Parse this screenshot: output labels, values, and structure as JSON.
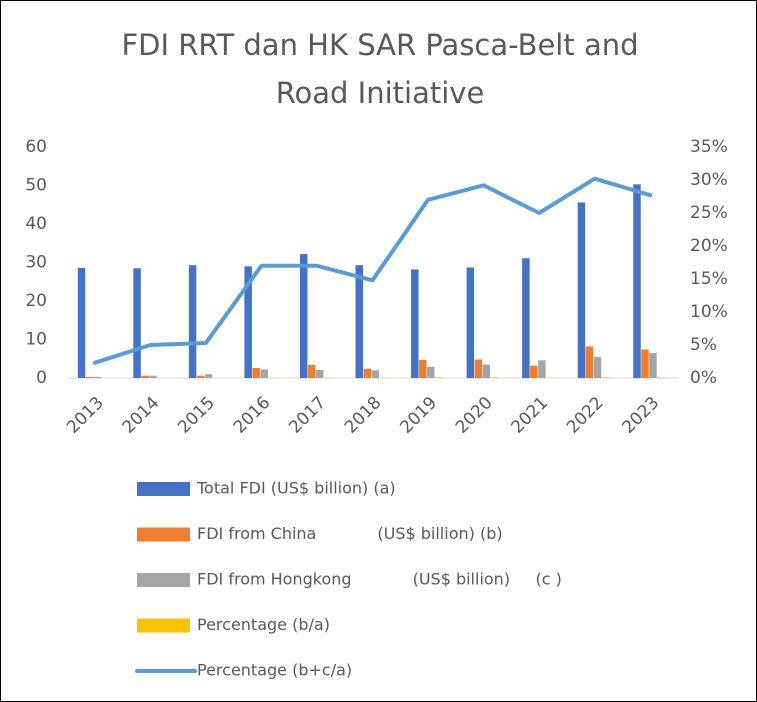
{
  "chart_data": {
    "type": "bar",
    "title": [
      "FDI RRT dan HK SAR Pasca-Belt and",
      "Road Initiative"
    ],
    "categories": [
      "2013",
      "2014",
      "2015",
      "2016",
      "2017",
      "2018",
      "2019",
      "2020",
      "2021",
      "2022",
      "2023"
    ],
    "series": [
      {
        "name": "Total FDI (US$ billion) (a)",
        "color": "#4472c4",
        "type": "bar",
        "values": [
          28.6,
          28.5,
          29.3,
          29.0,
          32.2,
          29.3,
          28.2,
          28.7,
          31.1,
          45.6,
          50.3
        ]
      },
      {
        "name": "FDI from China            (US$ billion) (b)",
        "color": "#ed7d31",
        "type": "bar",
        "values": [
          0.3,
          0.6,
          0.6,
          2.6,
          3.4,
          2.4,
          4.7,
          4.8,
          3.2,
          8.2,
          7.4
        ]
      },
      {
        "name": "FDI from Hongkong            (US$ billion)     (c )",
        "color": "#a5a5a5",
        "type": "bar",
        "values": [
          0.3,
          0.6,
          1.0,
          2.2,
          2.1,
          2.0,
          2.9,
          3.5,
          4.6,
          5.5,
          6.5
        ]
      },
      {
        "name": "Percentage (b/a)",
        "color": "#ffc000",
        "type": "bar",
        "values": [
          0.01,
          0.02,
          0.02,
          0.09,
          0.11,
          0.08,
          0.17,
          0.17,
          0.1,
          0.18,
          0.15
        ]
      },
      {
        "name": "Percentage (b+c/a)",
        "color": "#5b9bd5",
        "type": "line",
        "axis": "y2",
        "values": [
          2.3,
          5.0,
          5.3,
          17.0,
          17.0,
          14.8,
          27.0,
          29.2,
          25.0,
          30.2,
          27.7
        ]
      }
    ],
    "ylim": [
      0,
      60
    ],
    "yticks": [
      0,
      10,
      20,
      30,
      40,
      50,
      60
    ],
    "y2lim": [
      0,
      35
    ],
    "y2ticks": [
      {
        "value": 0,
        "label": "0%"
      },
      {
        "value": 5,
        "label": "5%"
      },
      {
        "value": 10,
        "label": "10%"
      },
      {
        "value": 15,
        "label": "15%"
      },
      {
        "value": 20,
        "label": "20%"
      },
      {
        "value": 25,
        "label": "25%"
      },
      {
        "value": 30,
        "label": "30%"
      },
      {
        "value": 35,
        "label": "35%"
      }
    ],
    "grid": false,
    "legend": "bottom"
  }
}
